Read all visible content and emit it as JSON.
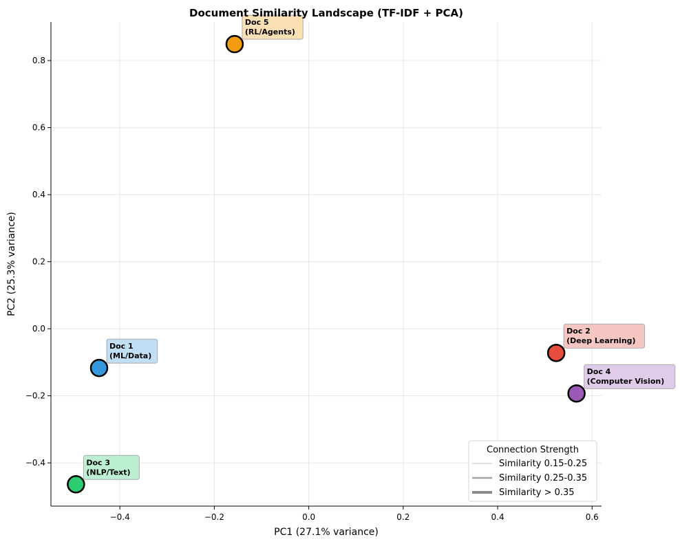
{
  "chart_data": {
    "type": "scatter",
    "title": "Document Similarity Landscape (TF-IDF + PCA)",
    "xlabel": "PC1 (27.1% variance)",
    "ylabel": "PC2 (25.3% variance)",
    "xlim": [
      -0.546,
      0.62
    ],
    "ylim": [
      -0.529,
      0.915
    ],
    "xticks": [
      -0.4,
      -0.2,
      0.0,
      0.2,
      0.4,
      0.6
    ],
    "xtick_labels": [
      "−0.4",
      "−0.2",
      "0.0",
      "0.2",
      "0.4",
      "0.6"
    ],
    "yticks": [
      -0.4,
      -0.2,
      0.0,
      0.2,
      0.4,
      0.6,
      0.8
    ],
    "ytick_labels": [
      "−0.4",
      "−0.2",
      "0.0",
      "0.2",
      "0.4",
      "0.6",
      "0.8"
    ],
    "grid": true,
    "points": [
      {
        "label": "Doc 1",
        "topic": "(ML/Data)",
        "x": -0.444,
        "y": -0.117,
        "color": "#3498db",
        "box_color": "#c0dff4"
      },
      {
        "label": "Doc 2",
        "topic": "(Deep Learning)",
        "x": 0.524,
        "y": -0.072,
        "color": "#e74c3c",
        "box_color": "#f6c7c2"
      },
      {
        "label": "Doc 3",
        "topic": "(NLP/Text)",
        "x": -0.493,
        "y": -0.464,
        "color": "#2ecc71",
        "box_color": "#bdf0d3"
      },
      {
        "label": "Doc 4",
        "topic": "(Computer Vision)",
        "x": 0.567,
        "y": -0.193,
        "color": "#9b59b6",
        "box_color": "#e0cbe9"
      },
      {
        "label": "Doc 5",
        "topic": "(RL/Agents)",
        "x": -0.157,
        "y": 0.849,
        "color": "#f39c12",
        "box_color": "#fbe0b6"
      }
    ],
    "legend": {
      "title": "Connection Strength",
      "placement": "lower-right",
      "entries": [
        {
          "label": "Similarity 0.15-0.25",
          "color": "#bfbfbf",
          "weight": "thin"
        },
        {
          "label": "Similarity 0.25-0.35",
          "color": "#a0a4a4",
          "weight": "medium"
        },
        {
          "label": "Similarity > 0.35",
          "color": "#8c8a88",
          "weight": "thick"
        }
      ]
    }
  }
}
